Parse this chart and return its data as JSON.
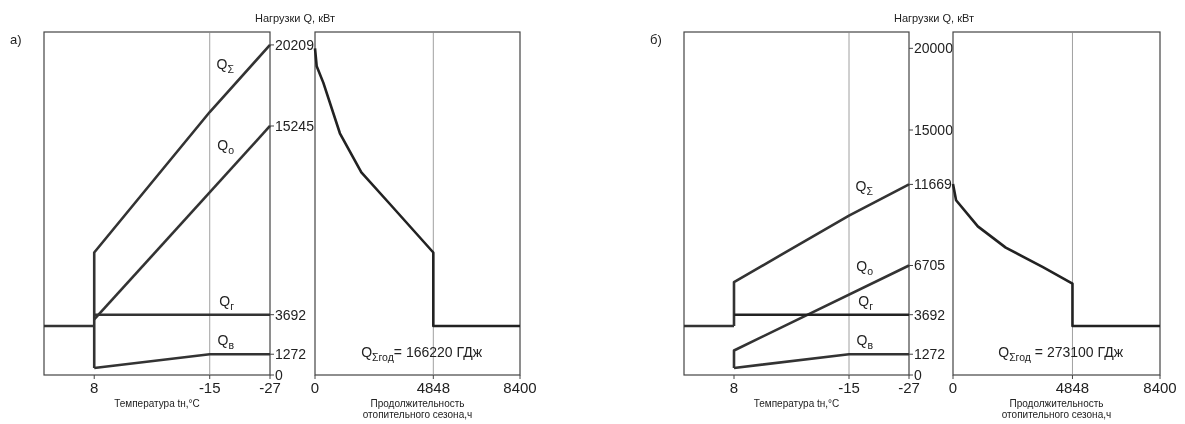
{
  "chart_data": [
    {
      "type": "line",
      "title": "а)",
      "ylabel": "Нагрузки Q, кВт",
      "xlabel": "Температура  tн,°С",
      "xlim": [
        18,
        -27
      ],
      "xticks": [
        8,
        -15,
        -27
      ],
      "ylim": [
        0,
        21000
      ],
      "yticks": [
        0,
        1272,
        3692,
        15245,
        20209
      ],
      "ref_lines": [
        {
          "axis": "x",
          "value": -15,
          "color": "#888888"
        }
      ],
      "series": [
        {
          "color": "#333333",
          "x": [
            18,
            8
          ],
          "values": [
            3000,
            3000
          ]
        },
        {
          "name": "Q$_{Σ}$",
          "color": "#333333",
          "x": [
            8,
            8,
            -15,
            -27
          ],
          "values": [
            430,
            7500,
            16100,
            20209
          ]
        },
        {
          "name": "Q$_{о}$",
          "color": "#333333",
          "x": [
            8,
            -27
          ],
          "values": [
            3400,
            15245
          ]
        },
        {
          "name": "Q$_{г}$",
          "color": "#333333",
          "x": [
            8,
            -27
          ],
          "values": [
            3692,
            3692
          ]
        },
        {
          "name": "Q$_{в}$",
          "color": "#333333",
          "x": [
            8,
            -15,
            -27
          ],
          "values": [
            430,
            1272,
            1272
          ]
        }
      ]
    },
    {
      "type": "line",
      "xlabel": "Продолжительность\nотопительного сезона,ч",
      "xlim": [
        0,
        8400
      ],
      "xticks": [
        0,
        4848,
        8400
      ],
      "ylim": [
        0,
        21000
      ],
      "tick_labels": "x",
      "ref_lines": [
        {
          "axis": "x",
          "value": 4848,
          "color": "#888888"
        }
      ],
      "annotations": [
        "Q$_{Σгод}$= 166220 ГДж"
      ],
      "series": [
        {
          "color": "#222222",
          "x": [
            0,
            70,
            340,
            1020,
            1900,
            3050,
            4848,
            4848,
            8400
          ],
          "values": [
            20000,
            18900,
            17900,
            14800,
            12400,
            10500,
            7500,
            3000,
            3000
          ]
        }
      ]
    },
    {
      "type": "line",
      "title": "б)",
      "ylabel": "Нагрузки Q, кВт",
      "xlabel": "Температура  tн,°С",
      "xlim": [
        18,
        -27
      ],
      "xticks": [
        8,
        -15,
        -27
      ],
      "ylim": [
        0,
        21000
      ],
      "yticks": [
        0,
        1272,
        3692,
        6705,
        11669,
        15000,
        20000
      ],
      "ref_lines": [
        {
          "axis": "x",
          "value": -15,
          "color": "#888888"
        }
      ],
      "series": [
        {
          "color": "#333333",
          "x": [
            18,
            8
          ],
          "values": [
            3000,
            3000
          ]
        },
        {
          "name": "Q$_{Σ}$",
          "color": "#333333",
          "x": [
            8,
            8,
            -15,
            -27
          ],
          "values": [
            3000,
            5690,
            9760,
            11669
          ]
        },
        {
          "name": "Q$_{о}$",
          "color": "#333333",
          "x": [
            8,
            8,
            -27
          ],
          "values": [
            430,
            1500,
            6705
          ]
        },
        {
          "name": "Q$_{г}$",
          "color": "#222222",
          "x": [
            8,
            -27
          ],
          "values": [
            3692,
            3692
          ]
        },
        {
          "name": "Q$_{в}$",
          "color": "#333333",
          "x": [
            8,
            -15,
            -27
          ],
          "values": [
            430,
            1272,
            1272
          ]
        }
      ]
    },
    {
      "type": "line",
      "xlabel": "Продолжительность\nотопительного сезона,ч",
      "xlim": [
        0,
        8400
      ],
      "xticks": [
        0,
        4848,
        8400
      ],
      "ylim": [
        0,
        21000
      ],
      "tick_labels": "x",
      "ref_lines": [
        {
          "axis": "x",
          "value": 4848,
          "color": "#888888"
        }
      ],
      "annotations": [
        "Q$_{Σгод}$ = 273100 ГДж"
      ],
      "series": [
        {
          "color": "#222222",
          "x": [
            0,
            125,
            1007,
            2140,
            3650,
            4848,
            4848,
            8400
          ],
          "values": [
            11700,
            10700,
            9100,
            7800,
            6600,
            5600,
            3000,
            3000
          ]
        }
      ]
    }
  ]
}
